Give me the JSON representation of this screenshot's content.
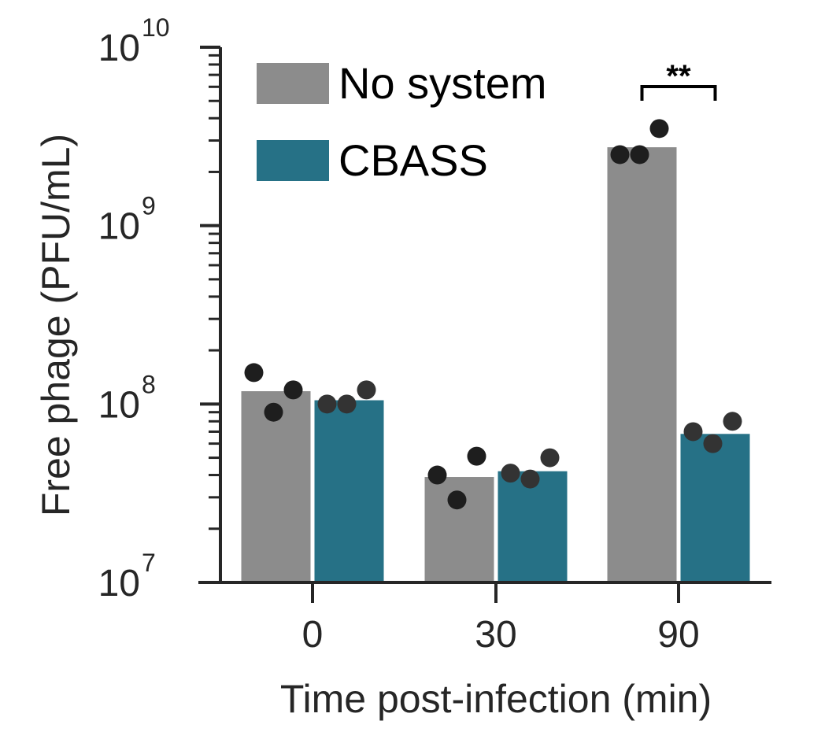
{
  "chart_data": {
    "type": "bar",
    "xlabel": "Time post-infection (min)",
    "ylabel": "Free phage (PFU/mL)",
    "yscale": "log",
    "ylim": [
      10000000,
      10000000000
    ],
    "ytick_labels": [
      {
        "value": 10000000,
        "base": "10",
        "exp": "7"
      },
      {
        "value": 100000000,
        "base": "10",
        "exp": "8"
      },
      {
        "value": 1000000000,
        "base": "10",
        "exp": "9"
      },
      {
        "value": 10000000000,
        "base": "10",
        "exp": "10"
      }
    ],
    "categories": [
      "0",
      "30",
      "90"
    ],
    "series": [
      {
        "name": "No system",
        "color": "#8c8c8c",
        "point_color": "#1e1e1e",
        "values": [
          118000000,
          39000000,
          2750000000
        ],
        "points": [
          [
            150000000,
            90000000,
            120000000
          ],
          [
            40000000,
            29000000,
            51000000
          ],
          [
            2500000000,
            2500000000,
            3500000000
          ]
        ]
      },
      {
        "name": "CBASS",
        "color": "#267186",
        "point_color": "#333333",
        "values": [
          105000000,
          42000000,
          68000000
        ],
        "points": [
          [
            100000000,
            100000000,
            120000000
          ],
          [
            41000000,
            38000000,
            50000000
          ],
          [
            70000000,
            60000000,
            80000000
          ]
        ]
      }
    ],
    "legend_position": "top-left",
    "annotations": [
      {
        "text": "**",
        "category": "90",
        "type": "significance-bracket"
      }
    ]
  }
}
